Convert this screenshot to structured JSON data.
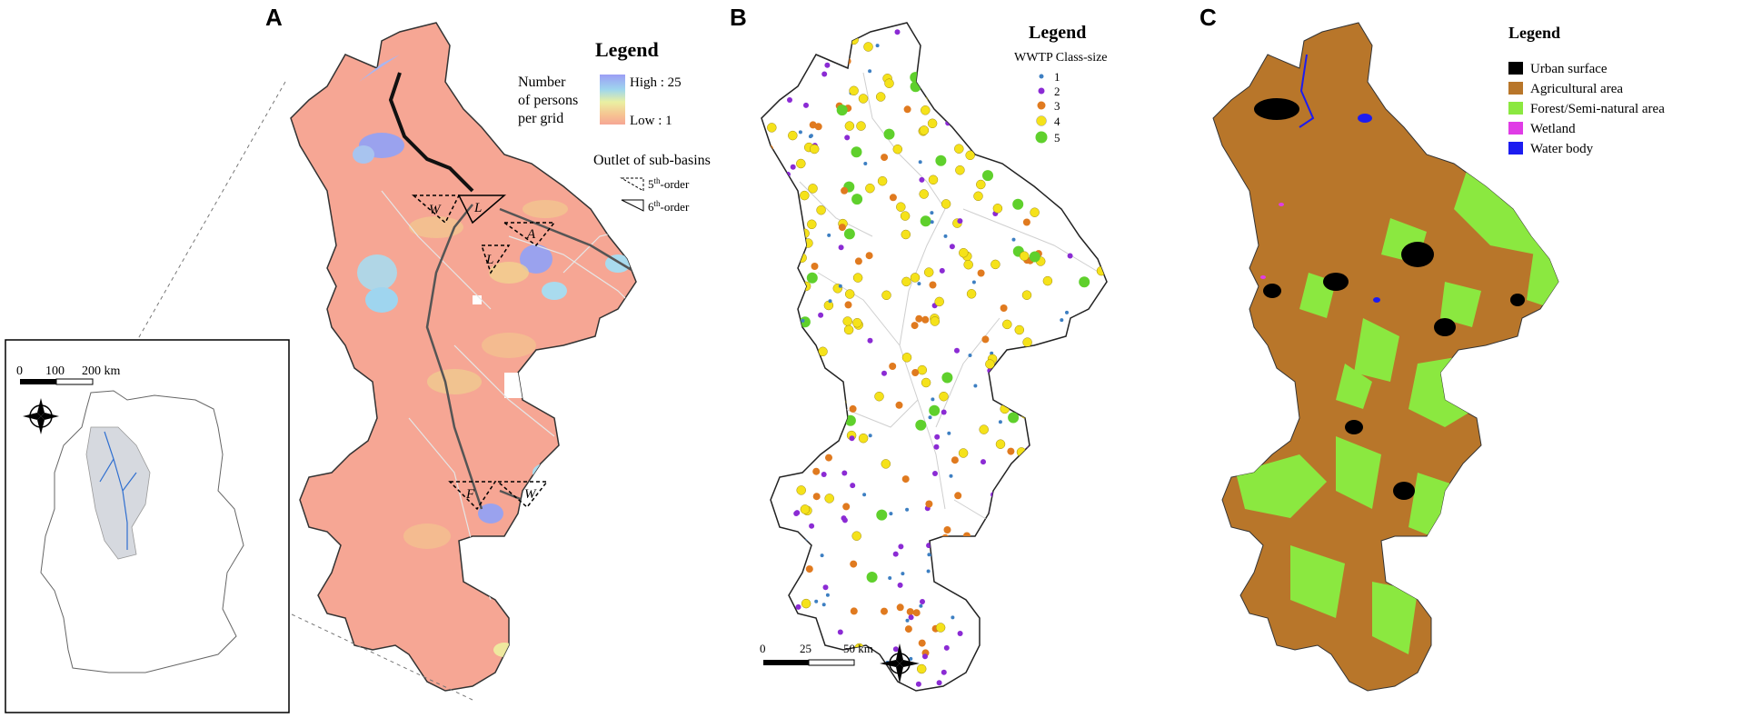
{
  "panel_a": {
    "letter": "A",
    "legend_title": "Legend",
    "pop_label_lines": [
      "Number",
      "of persons",
      "per grid"
    ],
    "high_label": "High : 25",
    "low_label": "Low : 1",
    "outlet_title": "Outlet of sub-basins",
    "outlet_5": "5",
    "outlet_6": "6",
    "outlet_suffix": "th",
    "outlet_order": "-order",
    "triangle_labels": [
      "W",
      "L",
      "A",
      "L",
      "F",
      "W"
    ],
    "colors": {
      "low": "#f6a694",
      "mid": "#f3c58f",
      "high": "#9fa8f0"
    }
  },
  "inset": {
    "scale_labels": [
      "0",
      "100",
      "200 km"
    ],
    "compass_letters": [
      "N",
      "E",
      "S",
      "W"
    ]
  },
  "panel_b": {
    "letter": "B",
    "legend_title": "Legend",
    "subtitle": "WWTP Class-size",
    "classes": [
      {
        "label": "1",
        "color": "#3d7fc2"
      },
      {
        "label": "2",
        "color": "#8b2bd4"
      },
      {
        "label": "3",
        "color": "#e07a1f"
      },
      {
        "label": "4",
        "color": "#f5e21a"
      },
      {
        "label": "5",
        "color": "#5fd02c"
      }
    ],
    "scale_labels": [
      "0",
      "25",
      "50 km"
    ],
    "compass_letters": [
      "N",
      "E",
      "S",
      "W"
    ]
  },
  "panel_c": {
    "letter": "C",
    "legend_title": "Legend",
    "classes": [
      {
        "label": "Urban surface",
        "color": "#000000"
      },
      {
        "label": "Agricultural area",
        "color": "#b8762a"
      },
      {
        "label": "Forest/Semi-natural area",
        "color": "#8be840"
      },
      {
        "label": "Wetland",
        "color": "#e03ce6"
      },
      {
        "label": "Water body",
        "color": "#1c1cf0"
      }
    ]
  }
}
